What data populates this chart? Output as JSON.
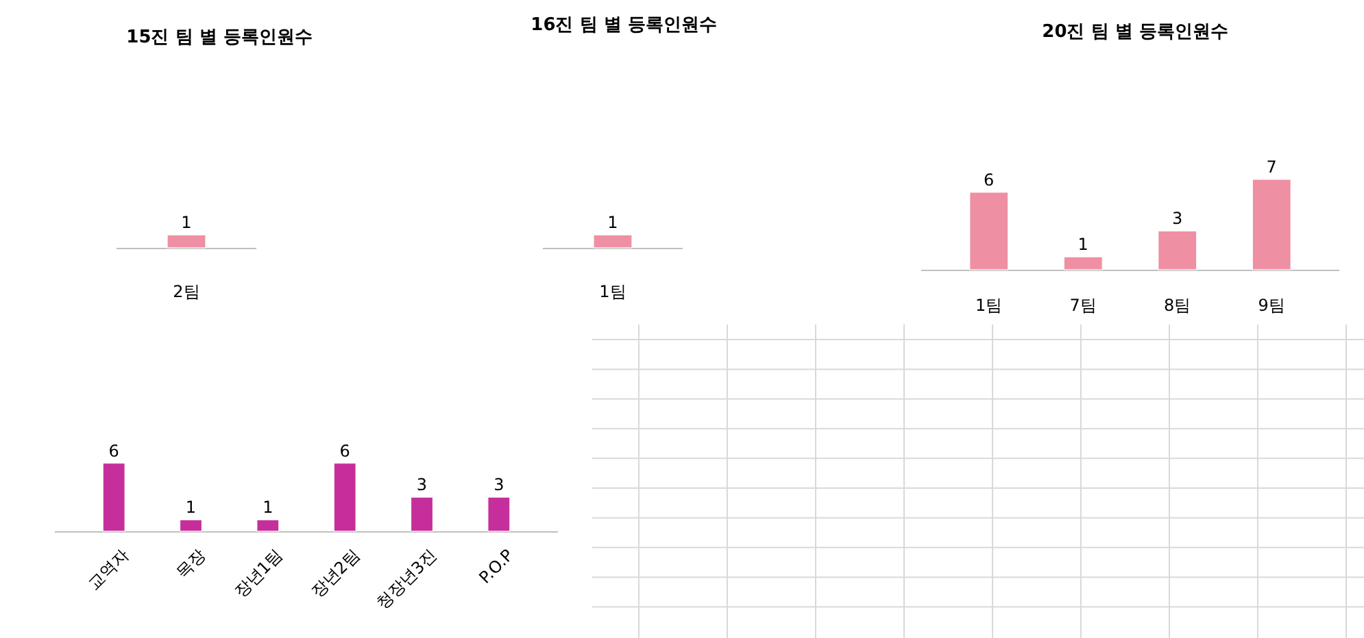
{
  "chart_data": [
    {
      "type": "bar",
      "title": "15진 팀 별 등록인원수",
      "categories": [
        "2팀"
      ],
      "values": [
        1
      ],
      "color": "#ef8fa3",
      "data_labels": true
    },
    {
      "type": "bar",
      "title": "16진 팀 별 등록인원수",
      "categories": [
        "1팀"
      ],
      "values": [
        1
      ],
      "color": "#ef8fa3",
      "data_labels": true
    },
    {
      "type": "bar",
      "title": "20진 팀 별 등록인원수",
      "categories": [
        "1팀",
        "7팀",
        "8팀",
        "9팀"
      ],
      "values": [
        6,
        1,
        3,
        7
      ],
      "color": "#ef8fa3",
      "data_labels": true
    },
    {
      "type": "bar",
      "categories": [
        "교역자",
        "목장",
        "장년1팀",
        "장년2팀",
        "청장년3진",
        "P.O.P"
      ],
      "values": [
        6,
        1,
        1,
        6,
        3,
        3
      ],
      "color": "#c62f9b",
      "data_labels": true
    }
  ]
}
